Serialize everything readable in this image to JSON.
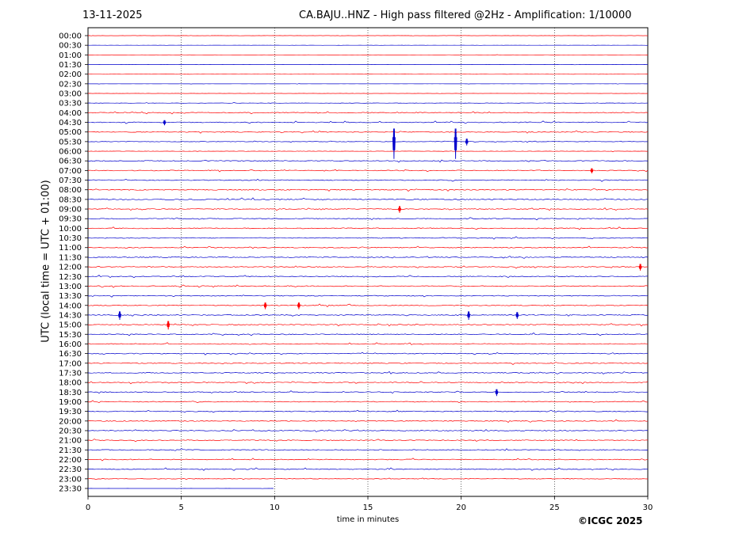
{
  "header": {
    "date": "13-11-2025",
    "title": "CA.BAJU..HNZ - High pass filtered @2Hz - Amplification: 1/10000"
  },
  "footer": {
    "xlabel": "time in minutes",
    "copyright": "©ICGC 2025"
  },
  "chart_data": {
    "type": "line",
    "title": "CA.BAJU..HNZ - High pass filtered @2Hz - Amplification: 1/10000",
    "xlabel": "time in minutes",
    "ylabel": "UTC (local time = UTC + 01:00)",
    "xlim": [
      0,
      30
    ],
    "x_ticks": [
      0,
      5,
      10,
      15,
      20,
      25,
      30
    ],
    "x_tick_labels": [
      "0",
      "5",
      "10",
      "15",
      "20",
      "25",
      "30"
    ],
    "grid": "vertical dotted lines at 5, 10, 15, 20, 25",
    "row_labels": [
      "00:00",
      "00:30",
      "01:00",
      "01:30",
      "02:00",
      "02:30",
      "03:00",
      "03:30",
      "04:00",
      "04:30",
      "05:00",
      "05:30",
      "06:00",
      "06:30",
      "07:00",
      "07:30",
      "08:00",
      "08:30",
      "09:00",
      "09:30",
      "10:00",
      "10:30",
      "11:00",
      "11:30",
      "12:00",
      "12:30",
      "13:00",
      "13:30",
      "14:00",
      "14:30",
      "15:00",
      "15:30",
      "16:00",
      "16:30",
      "17:00",
      "17:30",
      "18:00",
      "18:30",
      "19:00",
      "19:30",
      "20:00",
      "20:30",
      "21:00",
      "21:30",
      "22:00",
      "22:30",
      "23:00",
      "23:30"
    ],
    "trace_colors": [
      "#ff0000",
      "#0000cc"
    ],
    "trace_levels": [
      0.1,
      0.1,
      0.1,
      0.1,
      0.1,
      0.1,
      0.1,
      0.2,
      0.5,
      0.5,
      0.5,
      0.3,
      0.2,
      0.5,
      0.5,
      0.5,
      0.6,
      0.6,
      0.5,
      0.5,
      0.5,
      0.5,
      0.5,
      0.5,
      0.5,
      0.5,
      0.5,
      0.5,
      0.5,
      0.5,
      0.5,
      0.5,
      0.5,
      0.5,
      0.5,
      0.5,
      0.5,
      0.5,
      0.5,
      0.5,
      0.5,
      0.5,
      0.5,
      0.5,
      0.5,
      0.5,
      0.3,
      0.05
    ],
    "trace_end_minute": [
      30,
      30,
      30,
      30,
      30,
      30,
      30,
      30,
      30,
      30,
      30,
      30,
      30,
      30,
      30,
      30,
      30,
      30,
      30,
      30,
      30,
      30,
      30,
      30,
      30,
      30,
      30,
      30,
      30,
      30,
      30,
      30,
      30,
      30,
      30,
      30,
      30,
      30,
      30,
      30,
      30,
      30,
      30,
      30,
      30,
      30,
      30,
      10
    ],
    "events": [
      {
        "row": 11,
        "minute": 16.4,
        "amplitude": 1.8
      },
      {
        "row": 11,
        "minute": 19.7,
        "amplitude": 1.8
      },
      {
        "row": 11,
        "minute": 20.3,
        "amplitude": 0.4
      },
      {
        "row": 9,
        "minute": 4.1,
        "amplitude": 0.3
      },
      {
        "row": 18,
        "minute": 16.7,
        "amplitude": 0.4
      },
      {
        "row": 24,
        "minute": 29.6,
        "amplitude": 0.4
      },
      {
        "row": 29,
        "minute": 1.7,
        "amplitude": 0.5
      },
      {
        "row": 29,
        "minute": 20.4,
        "amplitude": 0.5
      },
      {
        "row": 29,
        "minute": 23.0,
        "amplitude": 0.4
      },
      {
        "row": 30,
        "minute": 4.3,
        "amplitude": 0.5
      },
      {
        "row": 28,
        "minute": 9.5,
        "amplitude": 0.4
      },
      {
        "row": 28,
        "minute": 11.3,
        "amplitude": 0.4
      },
      {
        "row": 37,
        "minute": 21.9,
        "amplitude": 0.4
      },
      {
        "row": 14,
        "minute": 27.0,
        "amplitude": 0.3
      }
    ]
  }
}
